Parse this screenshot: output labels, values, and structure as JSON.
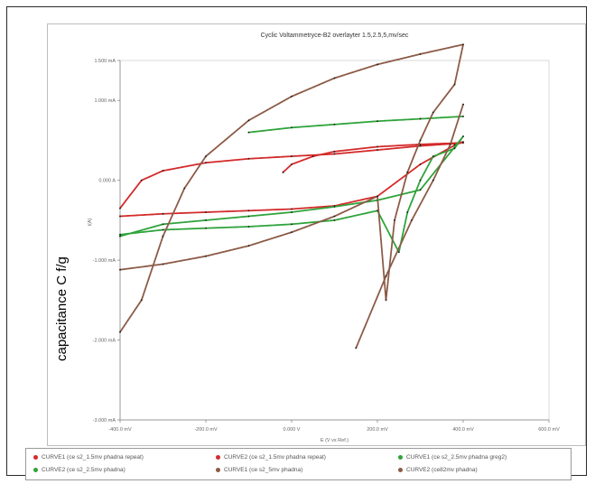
{
  "chart_data": {
    "type": "line",
    "title": "Cyclic Voltammetryce-B2 overlayter 1.5,2.5,5,mv/sec",
    "xlabel": "E (V vs Ref.)",
    "ylabel": "I(A)",
    "big_ylabel": "capacitance C f/g",
    "x_ticks": [
      "-400.0 mV",
      "-200.0 mV",
      "0.000 V",
      "200.0 mV",
      "400.0 mV",
      "600.0 mV"
    ],
    "x_tick_values": [
      -400,
      -200,
      0,
      200,
      400,
      600
    ],
    "y_ticks": [
      "1.500 mA",
      "1.000 mA",
      "0.000 A",
      "-1.000 mA",
      "-2.000 mA",
      "-3.000 mA"
    ],
    "y_tick_values": [
      1.5,
      1.0,
      0,
      -1.0,
      -2.0,
      -3.0
    ],
    "xlim": [
      -400,
      600
    ],
    "ylim": [
      -3.0,
      1.5
    ],
    "grid": false,
    "legend_position": "bottom",
    "series": [
      {
        "name": "CURVE1 (ce s2_1.5mv phadna repeat)",
        "color": "#d42a2a",
        "x": [
          -400,
          -350,
          -300,
          -200,
          -100,
          0,
          100,
          200,
          300,
          380,
          400,
          380,
          300,
          200,
          100,
          0,
          -100,
          -200,
          -300,
          -400
        ],
        "y": [
          -0.35,
          0.0,
          0.12,
          0.22,
          0.27,
          0.3,
          0.33,
          0.38,
          0.43,
          0.46,
          0.48,
          0.44,
          0.2,
          -0.2,
          -0.32,
          -0.36,
          -0.38,
          -0.4,
          -0.42,
          -0.45
        ]
      },
      {
        "name": "CURVE2 (ce s2_1.5mv phadna repeat)",
        "color": "#d42a2a",
        "x": [
          -20,
          0,
          50,
          100,
          200,
          300,
          400
        ],
        "y": [
          0.1,
          0.2,
          0.3,
          0.36,
          0.42,
          0.45,
          0.47
        ]
      },
      {
        "name": "CURVE1 (ce s2_2.5mv phadna greg2)",
        "color": "#2ea33a",
        "x": [
          -400,
          -300,
          -200,
          -100,
          0,
          100,
          200,
          300,
          400,
          380,
          330,
          300,
          270,
          250,
          200,
          100,
          0,
          -100,
          -200,
          -300,
          -400
        ],
        "y": [
          -0.7,
          -0.55,
          -0.5,
          -0.45,
          -0.4,
          -0.33,
          -0.25,
          -0.12,
          0.55,
          0.4,
          0.3,
          0.0,
          -0.4,
          -0.9,
          -0.38,
          -0.5,
          -0.55,
          -0.58,
          -0.6,
          -0.62,
          -0.68
        ]
      },
      {
        "name": "CURVE2 (ce s2_2.5mv phadna)",
        "color": "#2ea33a",
        "x": [
          -100,
          0,
          100,
          200,
          300,
          400
        ],
        "y": [
          0.6,
          0.66,
          0.7,
          0.74,
          0.77,
          0.8
        ]
      },
      {
        "name": "CURVE1 (ce s2_5mv phadna)",
        "color": "#8c5a46",
        "x": [
          -400,
          -350,
          -300,
          -250,
          -200,
          -100,
          0,
          100,
          200,
          300,
          400,
          380,
          330,
          300,
          270,
          240,
          220,
          200,
          100,
          0,
          -100,
          -200,
          -300,
          -400
        ],
        "y": [
          -1.9,
          -1.5,
          -0.7,
          -0.1,
          0.3,
          0.75,
          1.05,
          1.28,
          1.45,
          1.58,
          1.7,
          1.2,
          0.85,
          0.5,
          0.1,
          -0.5,
          -1.5,
          -0.2,
          -0.45,
          -0.65,
          -0.82,
          -0.95,
          -1.05,
          -1.12
        ]
      },
      {
        "name": "CURVE2 (ce82mv phadna)",
        "color": "#8c5a46",
        "x": [
          150,
          220,
          280,
          330,
          370,
          400
        ],
        "y": [
          -2.1,
          -1.2,
          -0.5,
          0.0,
          0.45,
          0.95
        ]
      }
    ]
  }
}
